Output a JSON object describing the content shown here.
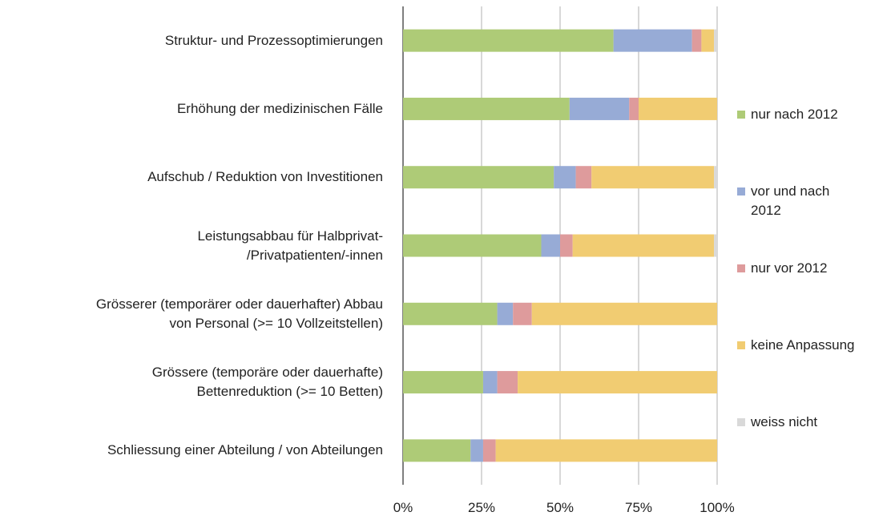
{
  "chart_data": {
    "type": "stacked-barh",
    "categories": [
      "Struktur- und Prozessoptimierungen",
      "Erhöhung der medizinischen Fälle",
      "Aufschub / Reduktion von Investitionen",
      "Leistungsabbau für Halbprivat-\n/Privatpatienten/-innen",
      "Grösserer (temporärer oder dauerhafter) Abbau\nvon Personal (>= 10 Vollzeitstellen)",
      "Grössere (temporäre oder dauerhafte)\nBettenreduktion (>= 10 Betten)",
      "Schliessung einer Abteilung / von Abteilungen"
    ],
    "series": [
      {
        "name": "nur nach 2012",
        "color": "#aecb77",
        "values": [
          67,
          53,
          48,
          44,
          30,
          25.5,
          21.5
        ]
      },
      {
        "name": "vor und nach 2012",
        "color": "#97abd6",
        "values": [
          25,
          19,
          7,
          6,
          5,
          4.5,
          4
        ]
      },
      {
        "name": "nur vor 2012",
        "color": "#de9b9c",
        "values": [
          3,
          3,
          5,
          4,
          6,
          6.5,
          4
        ]
      },
      {
        "name": "keine Anpassung",
        "color": "#f1cc72",
        "values": [
          4,
          25,
          39,
          45,
          59,
          63.5,
          70.5
        ]
      },
      {
        "name": "weiss nicht",
        "color": "#d9d9d9",
        "values": [
          1,
          0,
          1,
          1,
          0,
          0,
          0
        ]
      }
    ],
    "xlim": [
      0,
      100
    ],
    "xticks": [
      {
        "value": 0,
        "label": "0%"
      },
      {
        "value": 25,
        "label": "25%"
      },
      {
        "value": 50,
        "label": "50%"
      },
      {
        "value": 75,
        "label": "75%"
      },
      {
        "value": 100,
        "label": "100%"
      }
    ],
    "grid": true,
    "legend": "right"
  }
}
